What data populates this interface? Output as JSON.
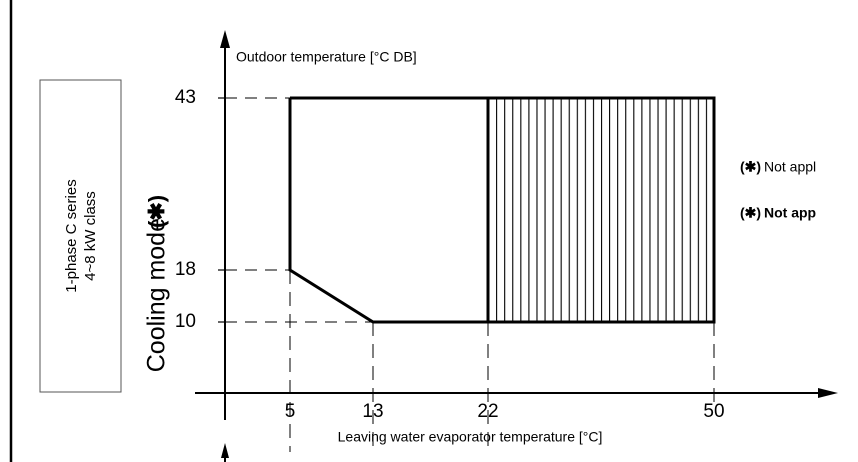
{
  "chart_data": {
    "type": "range",
    "side_label": [
      "1-phase C series",
      "4~8 kW class"
    ],
    "y_label": "Cooling mode",
    "y_marker": "(✱)",
    "y_axis_title": "Outdoor temperature [°C DB]",
    "x_axis_title": "Leaving water evaporator temperature [°C]",
    "xticks": [
      5,
      13,
      22,
      50
    ],
    "yticks": [
      10,
      18,
      43
    ],
    "boundary": {
      "x": [
        5,
        5,
        13,
        50,
        50,
        5
      ],
      "y": [
        43,
        18,
        10,
        10,
        43,
        43
      ]
    },
    "hatched": {
      "x": [
        22,
        50
      ],
      "y": [
        10,
        43
      ]
    },
    "notes": [
      {
        "marker": "(✱)",
        "text": "Not appl"
      },
      {
        "marker": "(✱)",
        "text": "Not app",
        "bold": true
      }
    ]
  }
}
